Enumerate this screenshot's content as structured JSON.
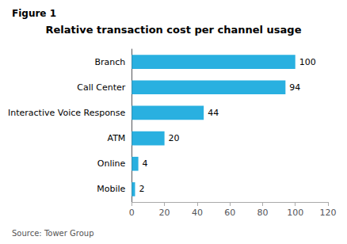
{
  "chart_data": {
    "type": "bar",
    "orientation": "horizontal",
    "title": "Relative transaction cost per channel usage",
    "annotations": [
      "Figure 1",
      "Source: Tower Group"
    ],
    "categories": [
      "Mobile",
      "Online",
      "ATM",
      "Interactive Voice Response",
      "Call Center",
      "Branch"
    ],
    "values": [
      2,
      4,
      20,
      44,
      94,
      100
    ],
    "color": "#29b0e0",
    "xlim": [
      0,
      120
    ],
    "xticks": [
      0,
      20,
      40,
      60,
      80,
      100,
      120
    ],
    "grid": false,
    "data_labels": true
  }
}
